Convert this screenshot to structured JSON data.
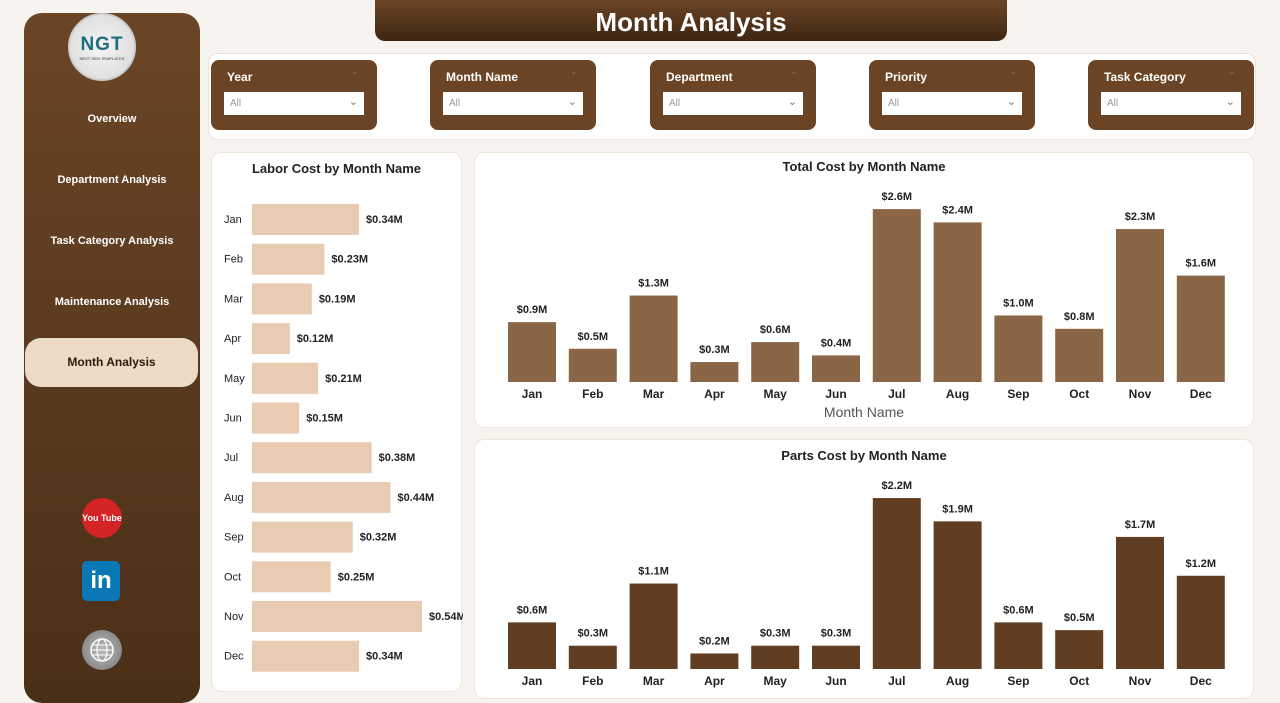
{
  "title": "Month Analysis",
  "logo": {
    "text": "NGT",
    "subtext": "NEXT GEN TEMPLATES"
  },
  "nav": [
    {
      "label": "Overview"
    },
    {
      "label": "Department Analysis"
    },
    {
      "label": "Task Category Analysis"
    },
    {
      "label": "Maintenance Analysis"
    },
    {
      "label": "Month Analysis",
      "active": true
    }
  ],
  "social": [
    {
      "icon": "youtube-icon",
      "label": "You Tube",
      "color": "#d42428"
    },
    {
      "icon": "linkedin-icon",
      "label": "in",
      "color": "#0a78b5"
    },
    {
      "icon": "globe-icon",
      "label": "",
      "color": "#8d8d8d"
    }
  ],
  "filters": [
    {
      "label": "Year",
      "value": "All"
    },
    {
      "label": "Month Name",
      "value": "All"
    },
    {
      "label": "Department",
      "value": "All"
    },
    {
      "label": "Priority",
      "value": "All"
    },
    {
      "label": "Task Category",
      "value": "All"
    }
  ],
  "colors": {
    "brand": "#6a4424",
    "labor_bar": "#e8cbb0",
    "total_bar": "#8a6647",
    "parts_bar": "#613e22"
  },
  "chart_data": [
    {
      "type": "bar",
      "orientation": "horizontal",
      "title": "Labor Cost by Month Name",
      "categories": [
        "Jan",
        "Feb",
        "Mar",
        "Apr",
        "May",
        "Jun",
        "Jul",
        "Aug",
        "Sep",
        "Oct",
        "Nov",
        "Dec"
      ],
      "values": [
        0.34,
        0.23,
        0.19,
        0.12,
        0.21,
        0.15,
        0.38,
        0.44,
        0.32,
        0.25,
        0.54,
        0.34
      ],
      "labels": [
        "$0.34M",
        "$0.23M",
        "$0.19M",
        "$0.12M",
        "$0.21M",
        "$0.15M",
        "$0.38M",
        "$0.44M",
        "$0.32M",
        "$0.25M",
        "$0.54M",
        "$0.34M"
      ],
      "unit": "$M"
    },
    {
      "type": "bar",
      "title": "Total Cost by Month Name",
      "xlabel": "Month Name",
      "categories": [
        "Jan",
        "Feb",
        "Mar",
        "Apr",
        "May",
        "Jun",
        "Jul",
        "Aug",
        "Sep",
        "Oct",
        "Nov",
        "Dec"
      ],
      "values": [
        0.9,
        0.5,
        1.3,
        0.3,
        0.6,
        0.4,
        2.6,
        2.4,
        1.0,
        0.8,
        2.3,
        1.6
      ],
      "labels": [
        "$0.9M",
        "$0.5M",
        "$1.3M",
        "$0.3M",
        "$0.6M",
        "$0.4M",
        "$2.6M",
        "$2.4M",
        "$1.0M",
        "$0.8M",
        "$2.3M",
        "$1.6M"
      ],
      "unit": "$M"
    },
    {
      "type": "bar",
      "title": "Parts Cost by Month Name",
      "categories": [
        "Jan",
        "Feb",
        "Mar",
        "Apr",
        "May",
        "Jun",
        "Jul",
        "Aug",
        "Sep",
        "Oct",
        "Nov",
        "Dec"
      ],
      "values": [
        0.6,
        0.3,
        1.1,
        0.2,
        0.3,
        0.3,
        2.2,
        1.9,
        0.6,
        0.5,
        1.7,
        1.2
      ],
      "labels": [
        "$0.6M",
        "$0.3M",
        "$1.1M",
        "$0.2M",
        "$0.3M",
        "$0.3M",
        "$2.2M",
        "$1.9M",
        "$0.6M",
        "$0.5M",
        "$1.7M",
        "$1.2M"
      ],
      "unit": "$M"
    }
  ]
}
